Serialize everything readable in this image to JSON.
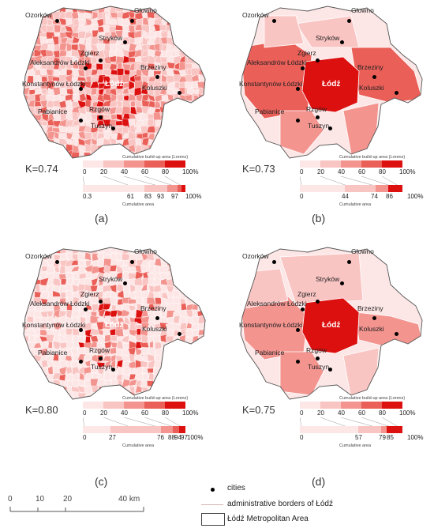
{
  "panels": [
    {
      "letter": "(a)",
      "k": "K=0.74",
      "cities": [
        "Ozorków",
        "Głowno",
        "Stryków",
        "Zgierz",
        "Aleksandrów Łódzki",
        "Brzeziny",
        "Konstantynów Łódzki",
        "Łódź",
        "Koluszki",
        "Pabianice",
        "Rzgów",
        "Tuszyn"
      ],
      "lorenz_top_label": "Cumulative build-up area (Lorenz)",
      "top_ticks": [
        "0",
        "20",
        "40",
        "60",
        "80",
        "100%"
      ],
      "bottom_ticks": [
        "0.3",
        "61",
        "83",
        "93",
        "97",
        "100%"
      ],
      "bottom_label": "Cumulative area"
    },
    {
      "letter": "(b)",
      "k": "K=0.73",
      "cities": [
        "Ozorków",
        "Głowno",
        "Stryków",
        "Zgierz",
        "Aleksandrów Łódzki",
        "Brzeziny",
        "Konstantynów Łódzki",
        "Łódź",
        "Koluszki",
        "Pabianice",
        "Rzgów",
        "Tuszyn"
      ],
      "lorenz_top_label": "Cumulative build-up area (Lorenz)",
      "top_ticks": [
        "0",
        "20",
        "40",
        "60",
        "80",
        "100%"
      ],
      "bottom_ticks": [
        "0",
        "44",
        "74",
        "86",
        "100%"
      ],
      "bottom_label": "Cumulative area"
    },
    {
      "letter": "(c)",
      "k": "K=0.80",
      "cities": [
        "Ozorków",
        "Głowno",
        "Stryków",
        "Zgierz",
        "Aleksandrów Łódzki",
        "Brzeziny",
        "Konstantynów Łódzki",
        "Łódź",
        "Koluszki",
        "Pabianice",
        "Rzgów",
        "Tuszyn"
      ],
      "lorenz_top_label": "Cumulative build-up area (Lorenz)",
      "top_ticks": [
        "0",
        "20",
        "40",
        "60",
        "80",
        "100%"
      ],
      "bottom_ticks": [
        "0",
        "27",
        "76",
        "88",
        "94",
        "97",
        "100%"
      ],
      "bottom_label": "Cumulative area"
    },
    {
      "letter": "(d)",
      "k": "K=0.75",
      "cities": [
        "Ozorków",
        "Głowno",
        "Stryków",
        "Zgierz",
        "Aleksandrów Łódzki",
        "Brzeziny",
        "Konstantynów Łódzki",
        "Łódź",
        "Koluszki",
        "Pabianice",
        "Rzgów",
        "Tuszyn"
      ],
      "lorenz_top_label": "Cumulative build-up area (Lorenz)",
      "top_ticks": [
        "0",
        "20",
        "40",
        "60",
        "80",
        "100%"
      ],
      "bottom_ticks": [
        "0",
        "57",
        "79",
        "85",
        "100%"
      ],
      "bottom_label": "Cumulative area"
    }
  ],
  "legend": {
    "cities": "cities",
    "borders": "administrative borders of Łódź",
    "area": "Łódź Metropolitan Area"
  },
  "scale": {
    "labels": [
      "0",
      "10",
      "20",
      "40 km"
    ]
  },
  "colors": {
    "class1": "#fde6e6",
    "class2": "#f9c5c3",
    "class3": "#f3948f",
    "class4": "#ea5f58",
    "class5": "#dd1010"
  }
}
